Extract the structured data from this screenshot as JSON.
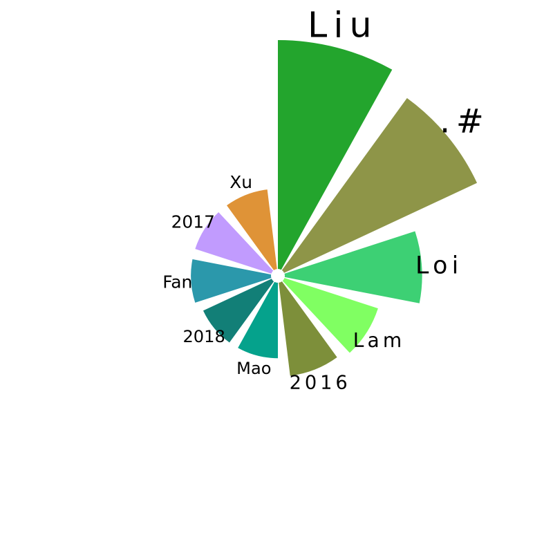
{
  "chart_data": {
    "type": "bar",
    "subtype": "radial",
    "categories": [
      "Liu",
      ".#",
      "Loi",
      "Lam",
      "2016",
      "Mao",
      "2018",
      "Fan",
      "2017",
      "Xu"
    ],
    "values": [
      100,
      93,
      60,
      43,
      41,
      33,
      33,
      35,
      35,
      35
    ],
    "colors": [
      "#23a52d",
      "#8e9548",
      "#3dd074",
      "#80ff62",
      "#7d8f3a",
      "#05a28c",
      "#127f77",
      "#2b98ab",
      "#c19bfe",
      "#df9337"
    ],
    "title": "",
    "xlabel": "",
    "ylabel": "",
    "grid": false,
    "legend": "none"
  }
}
